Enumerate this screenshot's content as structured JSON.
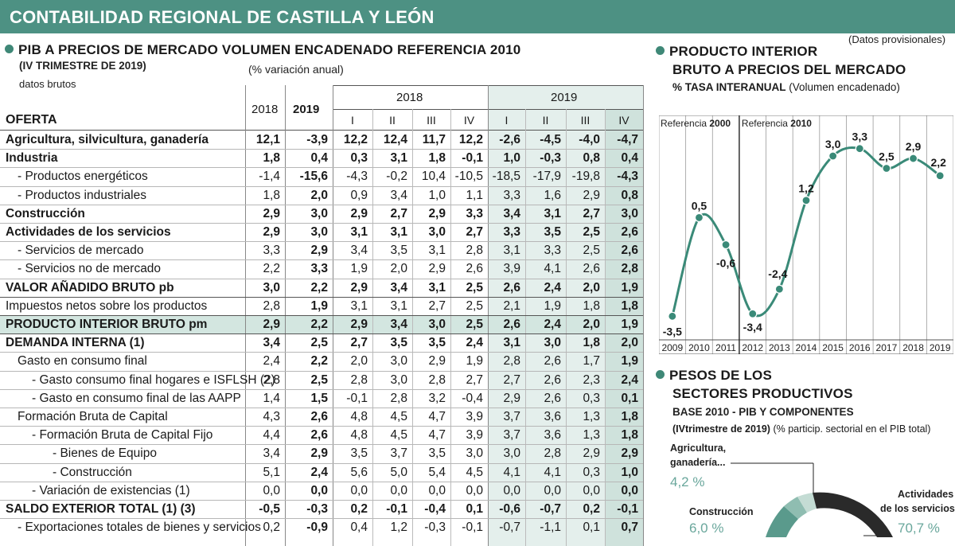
{
  "header": {
    "title": "CONTABILIDAD REGIONAL DE CASTILLA Y LEÓN"
  },
  "provisional_note": "(Datos provisionales)",
  "table": {
    "title": "PIB A PRECIOS DE MERCADO VOLUMEN ENCADENADO REFERENCIA 2010",
    "subtitle": "(IV TRIMESTRE DE 2019)",
    "subtitle2": "datos brutos",
    "unit": "(% variación anual)",
    "section_label": "OFERTA",
    "col_year_2018": "2018",
    "col_year_2019": "2019",
    "group_2018": "2018",
    "group_2019": "2019",
    "quarters": [
      "I",
      "II",
      "III",
      "IV",
      "I",
      "II",
      "III",
      "IV"
    ],
    "rows": [
      {
        "label": "Agricultura, silvicultura, ganadería",
        "bold": true,
        "values": [
          "12,1",
          "-3,9",
          "12,2",
          "12,4",
          "11,7",
          "12,2",
          "-2,6",
          "-4,5",
          "-4,0",
          "-4,7"
        ]
      },
      {
        "label": "Industria",
        "bold": true,
        "values": [
          "1,8",
          "0,4",
          "0,3",
          "3,1",
          "1,8",
          "-0,1",
          "1,0",
          "-0,3",
          "0,8",
          "0,4"
        ]
      },
      {
        "label": "- Productos energéticos",
        "bold": false,
        "indent": 1,
        "values": [
          "-1,4",
          "-15,6",
          "-4,3",
          "-0,2",
          "10,4",
          "-10,5",
          "-18,5",
          "-17,9",
          "-19,8",
          "-4,3"
        ]
      },
      {
        "label": "- Productos industriales",
        "bold": false,
        "indent": 1,
        "values": [
          "1,8",
          "2,0",
          "0,9",
          "3,4",
          "1,0",
          "1,1",
          "3,3",
          "1,6",
          "2,9",
          "0,8"
        ]
      },
      {
        "label": "Construcción",
        "bold": true,
        "values": [
          "2,9",
          "3,0",
          "2,9",
          "2,7",
          "2,9",
          "3,3",
          "3,4",
          "3,1",
          "2,7",
          "3,0"
        ]
      },
      {
        "label": "Actividades de los servicios",
        "bold": true,
        "values": [
          "2,9",
          "3,0",
          "3,1",
          "3,1",
          "3,0",
          "2,7",
          "3,3",
          "3,5",
          "2,5",
          "2,6"
        ]
      },
      {
        "label": "- Servicios de mercado",
        "bold": false,
        "indent": 1,
        "values": [
          "3,3",
          "2,9",
          "3,4",
          "3,5",
          "3,1",
          "2,8",
          "3,1",
          "3,3",
          "2,5",
          "2,6"
        ]
      },
      {
        "label": "- Servicios no de mercado",
        "bold": false,
        "indent": 1,
        "values": [
          "2,2",
          "3,3",
          "1,9",
          "2,0",
          "2,9",
          "2,6",
          "3,9",
          "4,1",
          "2,6",
          "2,8"
        ]
      },
      {
        "label": "VALOR AÑADIDO BRUTO pb",
        "bold": true,
        "values": [
          "3,0",
          "2,2",
          "2,9",
          "3,4",
          "3,1",
          "2,5",
          "2,6",
          "2,4",
          "2,0",
          "1,9"
        ]
      },
      {
        "label": "Impuestos netos sobre los productos",
        "bold": false,
        "values": [
          "2,8",
          "1,9",
          "3,1",
          "3,1",
          "2,7",
          "2,5",
          "2,1",
          "1,9",
          "1,8",
          "1,8"
        ]
      },
      {
        "label": "PRODUCTO INTERIOR BRUTO pm",
        "bold": true,
        "highlight": true,
        "values": [
          "2,9",
          "2,2",
          "2,9",
          "3,4",
          "3,0",
          "2,5",
          "2,6",
          "2,4",
          "2,0",
          "1,9"
        ]
      },
      {
        "label": "DEMANDA INTERNA (1)",
        "bold": true,
        "values": [
          "3,4",
          "2,5",
          "2,7",
          "3,5",
          "3,5",
          "2,4",
          "3,1",
          "3,0",
          "1,8",
          "2,0"
        ]
      },
      {
        "label": "Gasto en consumo final",
        "bold": false,
        "indent": 1,
        "values": [
          "2,4",
          "2,2",
          "2,0",
          "3,0",
          "2,9",
          "1,9",
          "2,8",
          "2,6",
          "1,7",
          "1,9"
        ]
      },
      {
        "label": "- Gasto consumo final hogares e ISFLSH (2)",
        "bold": false,
        "indent": 2,
        "values": [
          "2,8",
          "2,5",
          "2,8",
          "3,0",
          "2,8",
          "2,7",
          "2,7",
          "2,6",
          "2,3",
          "2,4"
        ]
      },
      {
        "label": "- Gasto en consumo final de las AAPP",
        "bold": false,
        "indent": 2,
        "values": [
          "1,4",
          "1,5",
          "-0,1",
          "2,8",
          "3,2",
          "-0,4",
          "2,9",
          "2,6",
          "0,3",
          "0,1"
        ]
      },
      {
        "label": "Formación Bruta de Capital",
        "bold": false,
        "indent": 1,
        "values": [
          "4,3",
          "2,6",
          "4,8",
          "4,5",
          "4,7",
          "3,9",
          "3,7",
          "3,6",
          "1,3",
          "1,8"
        ]
      },
      {
        "label": "- Formación Bruta de Capital Fijo",
        "bold": false,
        "indent": 2,
        "values": [
          "4,4",
          "2,6",
          "4,8",
          "4,5",
          "4,7",
          "3,9",
          "3,7",
          "3,6",
          "1,3",
          "1,8"
        ]
      },
      {
        "label": "- Bienes de Equipo",
        "bold": false,
        "indent": 3,
        "values": [
          "3,4",
          "2,9",
          "3,5",
          "3,7",
          "3,5",
          "3,0",
          "3,0",
          "2,8",
          "2,9",
          "2,9"
        ]
      },
      {
        "label": "- Construcción",
        "bold": false,
        "indent": 3,
        "values": [
          "5,1",
          "2,4",
          "5,6",
          "5,0",
          "5,4",
          "4,5",
          "4,1",
          "4,1",
          "0,3",
          "1,0"
        ]
      },
      {
        "label": "- Variación de existencias (1)",
        "bold": false,
        "indent": 2,
        "values": [
          "0,0",
          "0,0",
          "0,0",
          "0,0",
          "0,0",
          "0,0",
          "0,0",
          "0,0",
          "0,0",
          "0,0"
        ]
      },
      {
        "label": "SALDO EXTERIOR TOTAL (1) (3)",
        "bold": true,
        "values": [
          "-0,5",
          "-0,3",
          "0,2",
          "-0,1",
          "-0,4",
          "0,1",
          "-0,6",
          "-0,7",
          "0,2",
          "-0,1"
        ]
      },
      {
        "label": "- Exportaciones totales de bienes y servicios",
        "bold": false,
        "indent": 1,
        "values": [
          "0,2",
          "-0,9",
          "0,4",
          "1,2",
          "-0,3",
          "-0,1",
          "-0,7",
          "-1,1",
          "0,1",
          "0,7"
        ]
      }
    ]
  },
  "pib_chart": {
    "title_line1": "PRODUCTO INTERIOR",
    "title_line2": "BRUTO A PRECIOS DEL MERCADO",
    "subtitle_bold": "% TASA INTERANUAL",
    "subtitle_normal": "(Volumen encadenado)",
    "ref1_prefix": "Referencia",
    "ref1_year": "2000",
    "ref2_prefix": "Referencia",
    "ref2_year": "2010"
  },
  "chart_data": {
    "type": "line",
    "title": "PRODUCTO INTERIOR BRUTO A PRECIOS DEL MERCADO",
    "ylabel": "% TASA INTERANUAL (Volumen encadenado)",
    "x": [
      "2009",
      "2010",
      "2011",
      "2012",
      "2013",
      "2014",
      "2015",
      "2016",
      "2017",
      "2018",
      "2019"
    ],
    "values": [
      -3.5,
      0.5,
      -0.6,
      -3.4,
      -2.4,
      1.2,
      3.0,
      3.3,
      2.5,
      2.9,
      2.2
    ],
    "data_labels": [
      "-3,5",
      "0,5",
      "-0,6",
      "-3,4",
      "-2,4",
      "1,2",
      "3,0",
      "3,3",
      "2,5",
      "2,9",
      "2,2"
    ],
    "ylim": [
      -4.2,
      4.0
    ],
    "color": "#3a8a78",
    "grid": true
  },
  "pesos": {
    "title_line1": "PESOS DE LOS",
    "title_line2": "SECTORES PRODUCTIVOS",
    "subtitle": "BASE 2010 - PIB Y COMPONENTES",
    "subtitle2_bold": "(IVtrimestre de 2019)",
    "subtitle2_normal": "(% particip. sectorial en el PIB total)",
    "agri_label_1": "Agricultura,",
    "agri_label_2": "ganadería...",
    "agri_value": "4,2 %",
    "cons_label": "Construcción",
    "cons_value": "6,0 %",
    "serv_label_1": "Actividades",
    "serv_label_2": "de los servicios",
    "serv_value": "70,7 %"
  }
}
